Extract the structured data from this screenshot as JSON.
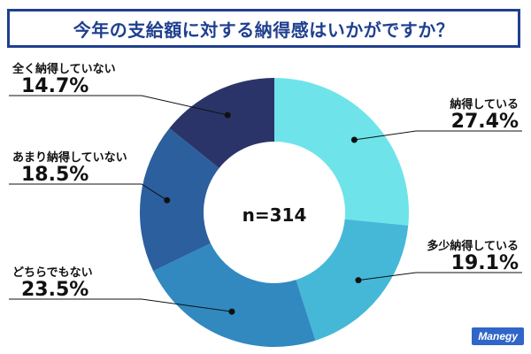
{
  "title": "今年の支給額に対する納得感はいかがですか？",
  "brand": "Manegy",
  "chart_data": {
    "type": "pie",
    "variant": "donut",
    "title": "今年の支給額に対する納得感はいかがですか？",
    "center_label": "n=314",
    "categories": [
      "納得している",
      "多少納得している",
      "どちらでもない",
      "あまり納得していない",
      "全く納得していない"
    ],
    "values": [
      27.4,
      19.1,
      23.5,
      18.5,
      14.7
    ],
    "value_labels": [
      "27.4%",
      "19.1%",
      "23.5%",
      "18.5%",
      "14.7%"
    ],
    "unit": "%",
    "colors": [
      "#6ee4ea",
      "#45b8d8",
      "#3189c0",
      "#2c5f9e",
      "#2b3468"
    ]
  }
}
